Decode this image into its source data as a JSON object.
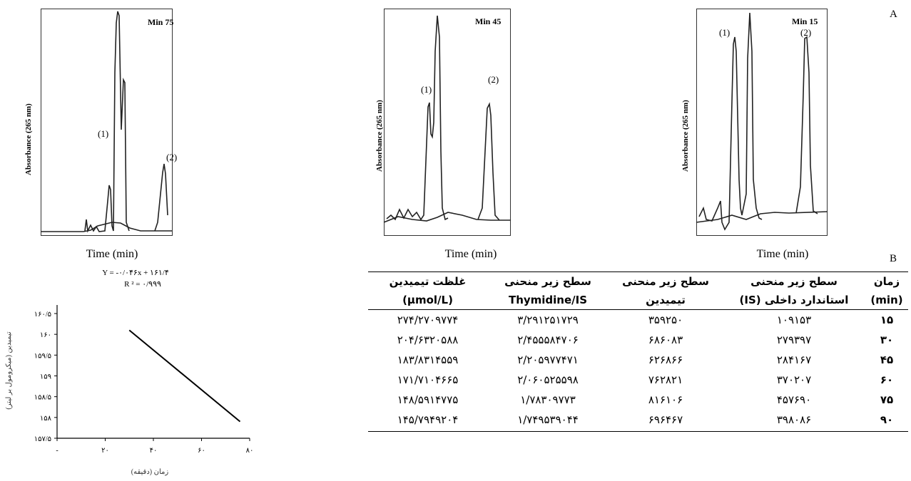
{
  "figure": {
    "panel_a_label": "A",
    "panel_b_label": "B",
    "chromatograms": [
      {
        "title": "Min 75",
        "ylabel": "Absorbance (265 nm)",
        "xlabel": "Time (min)",
        "peak1_label": "(1)",
        "peak2_label": "(2)"
      },
      {
        "title": "Min 45",
        "ylabel": "Absorbance (265 nm)",
        "xlabel": "Time (min)",
        "peak1_label": "(1)",
        "peak2_label": "(2)"
      },
      {
        "title": "Min 15",
        "ylabel": "Absorbance (265 nm)",
        "xlabel": "Time (min)",
        "peak1_label": "(1)",
        "peak2_label": "(2)"
      }
    ]
  },
  "chart_data": {
    "type": "line",
    "equation": "Y = -۰/۰۴۶x + ۱۶۱/۴",
    "r2": "R ² = ۰/۹۹۹",
    "xlabel": "زمان (دقیقه)",
    "ylabel": "تیمیدین (میکرومول بر لیتر)",
    "x_ticks": [
      "-",
      "۲۰",
      "۴۰",
      "۶۰",
      "۸۰"
    ],
    "y_ticks": [
      "۱۵۷/۵",
      "۱۵۸",
      "۱۵۸/۵",
      "۱۵۹",
      "۱۵۹/۵",
      "۱۶۰",
      "۱۶۰/۵"
    ],
    "xlim": [
      0,
      80
    ],
    "ylim": [
      157.5,
      160.5
    ],
    "x": [
      30,
      76
    ],
    "y": [
      160.1,
      157.9
    ]
  },
  "table": {
    "headers": [
      {
        "line1": "زمان",
        "line2": "(min)"
      },
      {
        "line1": "سطح زیر منحنی",
        "line2": "استاندارد داخلی (IS)"
      },
      {
        "line1": "سطح زیر منحنی",
        "line2": "تیمیدین"
      },
      {
        "line1": "سطح زیر منحنی",
        "line2": "Thymidine/IS"
      },
      {
        "line1": "غلظت تیمیدین",
        "line2": "(µmol/L)"
      }
    ],
    "rows": [
      [
        "۱۵",
        "۱۰۹۱۵۳",
        "۳۵۹۲۵۰",
        "۳/۲۹۱۲۵۱۷۲۹",
        "۲۷۴/۲۷۰۹۷۷۴"
      ],
      [
        "۳۰",
        "۲۷۹۳۹۷",
        "۶۸۶۰۸۳",
        "۲/۴۵۵۵۸۴۷۰۶",
        "۲۰۴/۶۳۲۰۵۸۸"
      ],
      [
        "۴۵",
        "۲۸۴۱۶۷",
        "۶۲۶۸۶۶",
        "۲/۲۰۵۹۷۷۴۷۱",
        "۱۸۳/۸۳۱۴۵۵۹"
      ],
      [
        "۶۰",
        "۳۷۰۲۰۷",
        "۷۶۲۸۲۱",
        "۲/۰۶۰۵۲۵۵۹۸",
        "۱۷۱/۷۱۰۴۶۶۵"
      ],
      [
        "۷۵",
        "۴۵۷۶۹۰",
        "۸۱۶۱۰۶",
        "۱/۷۸۳۰۹۷۷۳",
        "۱۴۸/۵۹۱۴۷۷۵"
      ],
      [
        "۹۰",
        "۳۹۸۰۸۶",
        "۶۹۶۴۶۷",
        "۱/۷۴۹۵۳۹۰۴۴",
        "۱۴۵/۷۹۴۹۲۰۴"
      ]
    ]
  }
}
